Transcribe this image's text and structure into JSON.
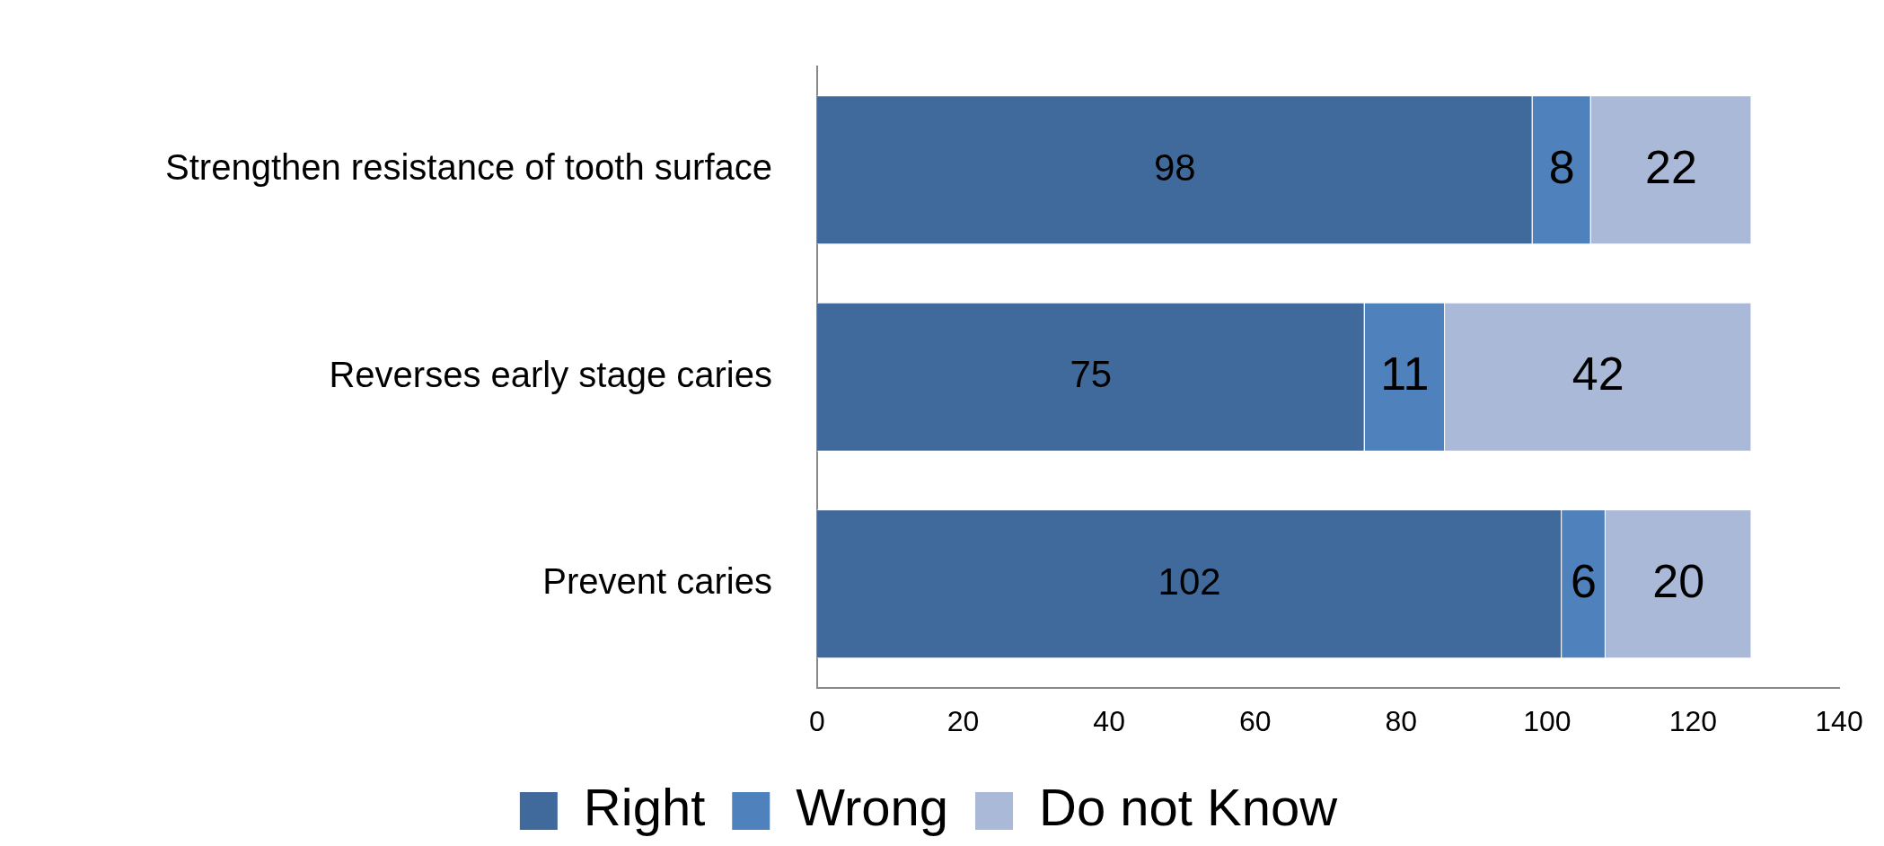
{
  "chart_data": {
    "type": "bar",
    "orientation": "horizontal",
    "stacked": true,
    "categories": [
      "Strengthen resistance of tooth surface",
      "Reverses early stage caries",
      "Prevent caries"
    ],
    "series": [
      {
        "name": "Right",
        "color": "#416a9c",
        "values": [
          98,
          75,
          102
        ]
      },
      {
        "name": "Wrong",
        "color": "#4f81bd",
        "values": [
          8,
          11,
          6
        ]
      },
      {
        "name": "Do not Know",
        "color": "#aab9d7",
        "values": [
          22,
          42,
          20
        ]
      }
    ],
    "xlim": [
      0,
      140
    ],
    "xticks": [
      0,
      20,
      40,
      60,
      80,
      100,
      120,
      140
    ],
    "data_labels": true,
    "legend": "bottom",
    "grid": false
  }
}
